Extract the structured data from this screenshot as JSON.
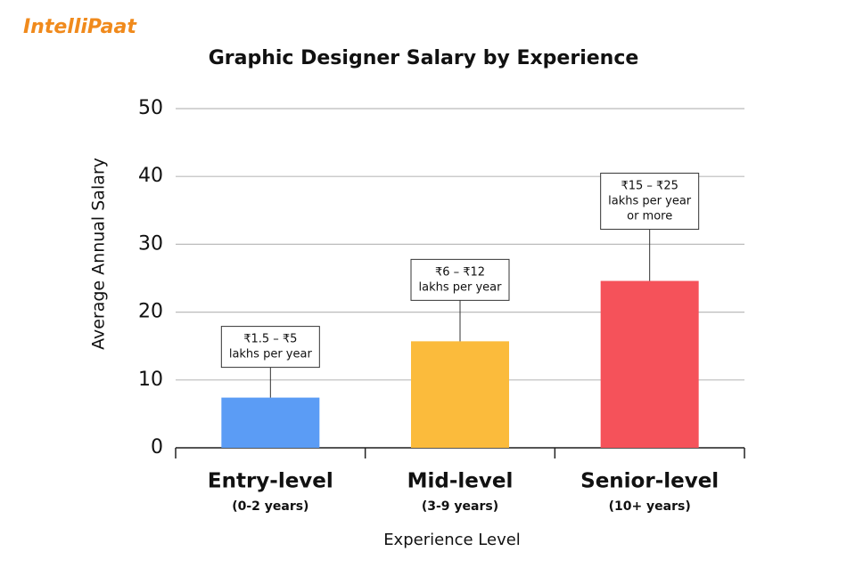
{
  "logo": "IntelliPaat",
  "chart_data": {
    "type": "bar",
    "title": "Graphic Designer Salary by Experience",
    "categories": [
      "Entry-level",
      "Mid-level",
      "Senior-level"
    ],
    "category_subtitles": [
      "(0-2 years)",
      "(3-9 years)",
      "(10+ years)"
    ],
    "values": [
      7.4,
      15.7,
      24.6
    ],
    "colors": [
      "#5b9cf5",
      "#fbbb3c",
      "#f5525a"
    ],
    "annotations": [
      [
        "₹1.5 – ₹5",
        "lakhs per year"
      ],
      [
        "₹6 – ₹12",
        "lakhs per year"
      ],
      [
        "₹15 – ₹25",
        "lakhs per year",
        "or more"
      ]
    ],
    "x_label": "Experience Level",
    "y_label": "Average Annual Salary",
    "ylim": [
      0,
      50
    ],
    "yticks": [
      0,
      10,
      20,
      30,
      40,
      50
    ],
    "grid": true
  }
}
